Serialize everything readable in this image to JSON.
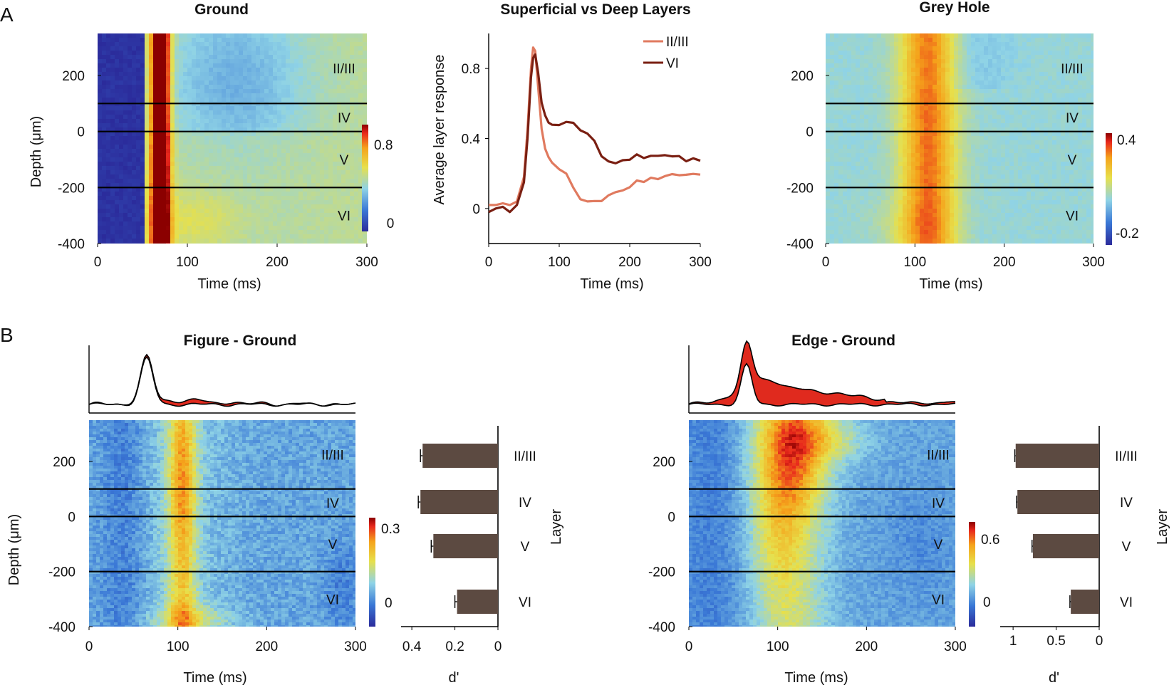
{
  "panel_labels": {
    "a": "A",
    "b": "B"
  },
  "colors": {
    "jet": [
      "#2b2b9b",
      "#3a78d6",
      "#8fd3e6",
      "#e7e04b",
      "#f5a31b",
      "#e8281c",
      "#8b0000"
    ],
    "layer_II_III": "#e07a5f",
    "layer_VI": "#7a1f12",
    "bar": "#5c4a41",
    "diff_fill": "#e02a1e"
  },
  "chart_data": [
    {
      "id": "ground",
      "type": "heatmap",
      "title": "Ground",
      "xlabel": "Time (ms)",
      "ylabel": "Depth (μm)",
      "xlim": [
        0,
        300
      ],
      "ylim": [
        -400,
        350
      ],
      "xticks": [
        "0",
        "100",
        "200",
        "300"
      ],
      "yticks": [
        "200",
        "0",
        "-200",
        "-400"
      ],
      "layer_boundaries": [
        100,
        0,
        -200
      ],
      "layers": [
        "II/III",
        "IV",
        "V",
        "VI"
      ],
      "colorbar": {
        "range": [
          -0.1,
          0.95
        ],
        "ticks": [
          "0.8",
          "0"
        ]
      }
    },
    {
      "id": "superficial_deep",
      "type": "line",
      "title": "Superficial vs Deep Layers",
      "xlabel": "Time (ms)",
      "ylabel": "Average layer response",
      "xlim": [
        0,
        300
      ],
      "ylim": [
        -0.2,
        1.0
      ],
      "xticks": [
        "0",
        "100",
        "200",
        "300"
      ],
      "yticks": [
        "0.8",
        "0.4",
        "0"
      ],
      "series": [
        {
          "name": "II/III",
          "x": [
            0,
            10,
            20,
            30,
            40,
            50,
            55,
            60,
            63,
            66,
            70,
            75,
            80,
            85,
            90,
            100,
            110,
            120,
            130,
            140,
            150,
            160,
            170,
            180,
            190,
            200,
            210,
            220,
            230,
            240,
            250,
            260,
            270,
            280,
            290,
            300
          ],
          "y": [
            0.02,
            0.02,
            0.03,
            0.02,
            0.04,
            0.18,
            0.45,
            0.8,
            0.92,
            0.9,
            0.7,
            0.45,
            0.34,
            0.3,
            0.27,
            0.23,
            0.2,
            0.12,
            0.06,
            0.05,
            0.05,
            0.04,
            0.07,
            0.1,
            0.11,
            0.13,
            0.15,
            0.16,
            0.17,
            0.17,
            0.18,
            0.19,
            0.19,
            0.2,
            0.2,
            0.19
          ]
        },
        {
          "name": "VI",
          "x": [
            0,
            10,
            20,
            30,
            40,
            50,
            55,
            60,
            63,
            66,
            70,
            75,
            80,
            85,
            90,
            100,
            110,
            120,
            130,
            140,
            150,
            160,
            170,
            180,
            190,
            200,
            210,
            220,
            230,
            240,
            250,
            260,
            270,
            280,
            290,
            300
          ],
          "y": [
            -0.02,
            0.0,
            0.01,
            -0.02,
            0.02,
            0.15,
            0.4,
            0.75,
            0.86,
            0.88,
            0.78,
            0.6,
            0.53,
            0.5,
            0.48,
            0.48,
            0.5,
            0.49,
            0.45,
            0.42,
            0.38,
            0.3,
            0.26,
            0.26,
            0.27,
            0.28,
            0.3,
            0.29,
            0.3,
            0.3,
            0.31,
            0.3,
            0.29,
            0.28,
            0.28,
            0.27
          ]
        }
      ]
    },
    {
      "id": "grey_hole",
      "type": "heatmap",
      "title": "Grey Hole",
      "xlabel": "Time (ms)",
      "ylabel": "",
      "xlim": [
        0,
        300
      ],
      "ylim": [
        -400,
        350
      ],
      "xticks": [
        "0",
        "100",
        "200",
        "300"
      ],
      "yticks": [
        "200",
        "0",
        "-200",
        "-400"
      ],
      "layer_boundaries": [
        100,
        0,
        -200
      ],
      "layers": [
        "II/III",
        "IV",
        "V",
        "VI"
      ],
      "colorbar": {
        "range": [
          -0.25,
          0.45
        ],
        "ticks": [
          "0.4",
          "-0.2"
        ]
      }
    },
    {
      "id": "figure_ground",
      "type": "heatmap",
      "title": "Figure - Ground",
      "xlabel": "Time (ms)",
      "ylabel": "Depth (μm)",
      "xlim": [
        0,
        300
      ],
      "ylim": [
        -400,
        350
      ],
      "xticks": [
        "0",
        "100",
        "200",
        "300"
      ],
      "yticks": [
        "200",
        "0",
        "-200",
        "-400"
      ],
      "layer_boundaries": [
        100,
        0,
        -200
      ],
      "layers": [
        "II/III",
        "IV",
        "V",
        "VI"
      ],
      "colorbar": {
        "range": [
          -0.1,
          0.36
        ],
        "ticks": [
          "0.3",
          "0"
        ]
      },
      "bars": {
        "xlabel": "d'",
        "ylabel": "Layer",
        "xticks": [
          "0.4",
          "0.2",
          "0"
        ],
        "xmax": 0.45,
        "labels": [
          "II/III",
          "IV",
          "V",
          "VI"
        ],
        "values": [
          0.35,
          0.36,
          0.3,
          0.19
        ],
        "errors": [
          0.01,
          0.01,
          0.01,
          0.01
        ]
      }
    },
    {
      "id": "edge_ground",
      "type": "heatmap",
      "title": "Edge - Ground",
      "xlabel": "Time (ms)",
      "ylabel": "",
      "xlim": [
        0,
        300
      ],
      "ylim": [
        -400,
        350
      ],
      "xticks": [
        "0",
        "100",
        "200",
        "300"
      ],
      "yticks": [
        "200",
        "0",
        "-200",
        "-400"
      ],
      "layer_boundaries": [
        100,
        0,
        -200
      ],
      "layers": [
        "II/III",
        "IV",
        "V",
        "VI"
      ],
      "colorbar": {
        "range": [
          -0.2,
          0.72
        ],
        "ticks": [
          "0.6",
          "0"
        ]
      },
      "bars": {
        "xlabel": "d'",
        "ylabel": "Layer",
        "xticks": [
          "1",
          "0.5",
          "0"
        ],
        "xmax": 1.15,
        "labels": [
          "II/III",
          "IV",
          "V",
          "VI"
        ],
        "values": [
          0.97,
          0.95,
          0.77,
          0.33
        ],
        "errors": [
          0.01,
          0.01,
          0.01,
          0.01
        ]
      }
    }
  ]
}
